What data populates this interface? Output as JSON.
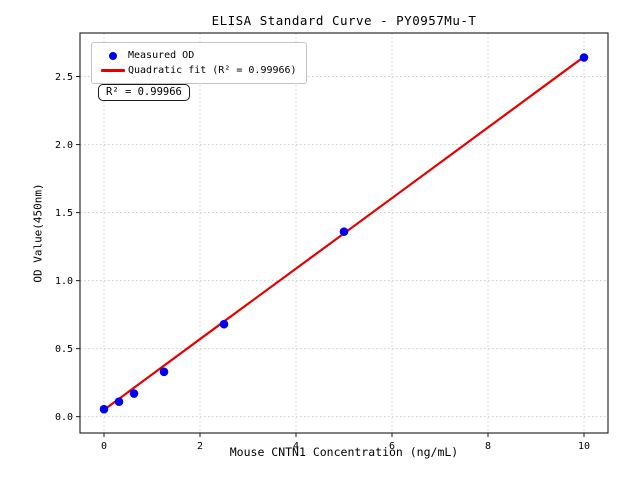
{
  "figure": {
    "title": "ELISA Standard Curve - PY0957Mu-T"
  },
  "legend": {
    "items": [
      {
        "label": "Measured OD",
        "marker": "blue-dot"
      },
      {
        "label": "Quadratic fit (R² = 0.99966)",
        "marker": "red-line"
      }
    ]
  },
  "annotation": {
    "text": "R² = 0.99966"
  },
  "colors": {
    "points": "#0000f0",
    "fit_line": "#e60000",
    "grid": "#c9c9c9",
    "axis": "#1a1a1a",
    "text": "#000000"
  },
  "chart_data": {
    "type": "scatter",
    "title": "ELISA Standard Curve - PY0957Mu-T",
    "xlabel": "Mouse CNTN1 Concentration (ng/mL)",
    "ylabel": "OD Value(450nm)",
    "xlim": [
      -0.5,
      10.5
    ],
    "ylim": [
      -0.12,
      2.82
    ],
    "xticks": [
      0,
      2,
      4,
      6,
      8,
      10
    ],
    "xtick_labels": [
      "0",
      "2",
      "4",
      "6",
      "8",
      "10"
    ],
    "yticks": [
      0.0,
      0.5,
      1.0,
      1.5,
      2.0,
      2.5
    ],
    "ytick_labels": [
      "0.0",
      "0.5",
      "1.0",
      "1.5",
      "2.0",
      "2.5"
    ],
    "grid": true,
    "grid_style": "dotted",
    "legend_position": "upper-left",
    "series": [
      {
        "name": "Measured OD",
        "type": "scatter",
        "color": "#0000f0",
        "x": [
          0,
          0.3125,
          0.625,
          1.25,
          2.5,
          5,
          10
        ],
        "y": [
          0.055,
          0.11,
          0.17,
          0.33,
          0.68,
          1.36,
          2.64
        ]
      },
      {
        "name": "Quadratic fit (R² = 0.99966)",
        "type": "line",
        "color": "#e60000",
        "r_squared": 0.99966,
        "points": [
          [
            0,
            0.05
          ],
          [
            2.5,
            0.7
          ],
          [
            5,
            1.347
          ],
          [
            7.5,
            1.996
          ],
          [
            10,
            2.645
          ]
        ]
      }
    ]
  }
}
